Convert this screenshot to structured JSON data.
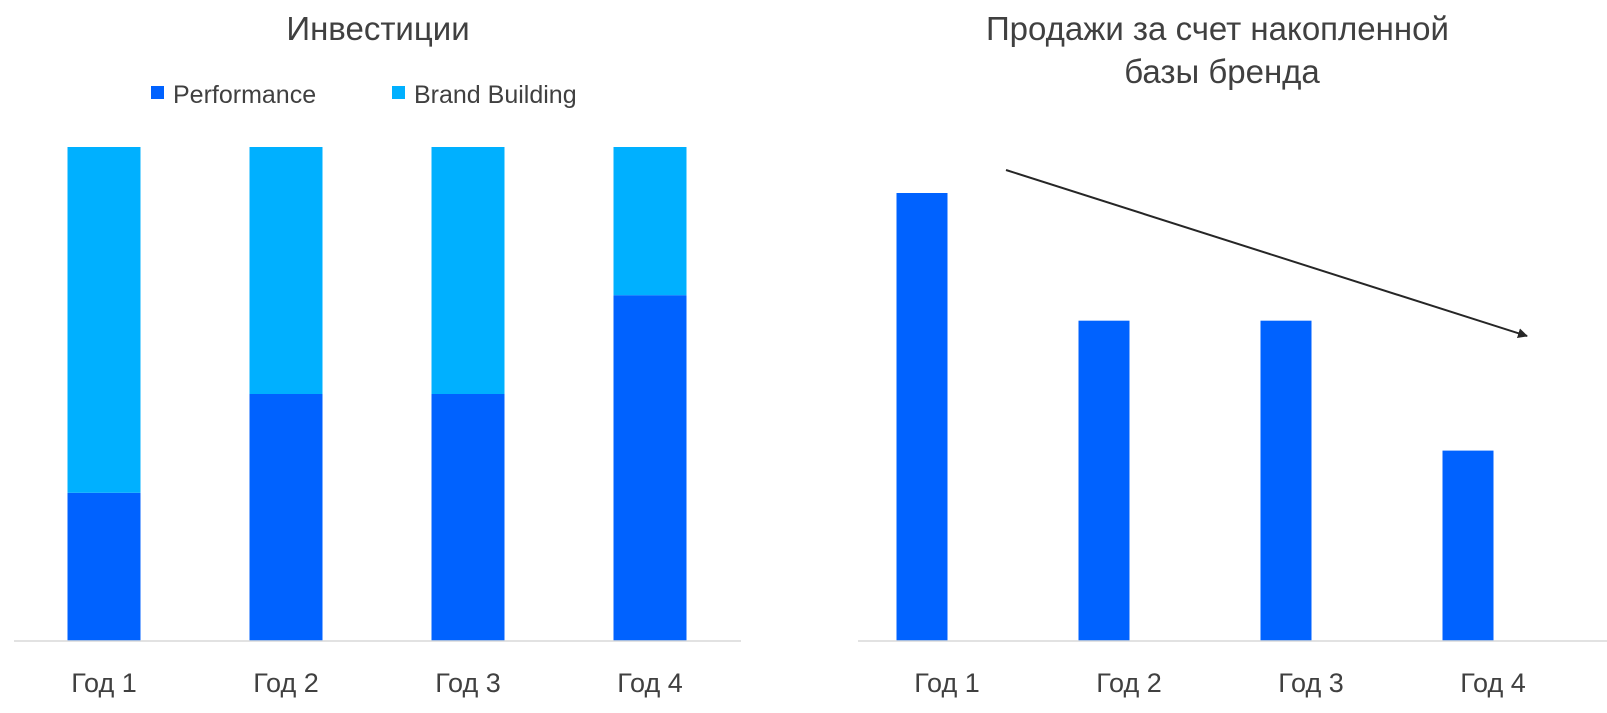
{
  "chart_data": [
    {
      "type": "bar",
      "stacked": true,
      "normalized": true,
      "title": "Инвестиции",
      "categories": [
        "Год 1",
        "Год 2",
        "Год 3",
        "Год 4"
      ],
      "series": [
        {
          "name": "Performance",
          "values": [
            30,
            50,
            50,
            70
          ],
          "color": "#0062FF"
        },
        {
          "name": "Brand Building",
          "values": [
            70,
            50,
            50,
            30
          ],
          "color": "#00B0FF"
        }
      ],
      "ylim": [
        0,
        100
      ],
      "grid": false,
      "legend_position": "top"
    },
    {
      "type": "bar",
      "title": "Продажи за счет накопленной базы бренда",
      "categories": [
        "Год 1",
        "Год 2",
        "Год 3",
        "Год 4"
      ],
      "series": [
        {
          "values": [
            100,
            71.5,
            71.5,
            42.5
          ],
          "color": "#0062FF"
        }
      ],
      "ylim": [
        0,
        110
      ],
      "grid": false,
      "annotations": [
        "downward-trend-arrow"
      ]
    }
  ]
}
